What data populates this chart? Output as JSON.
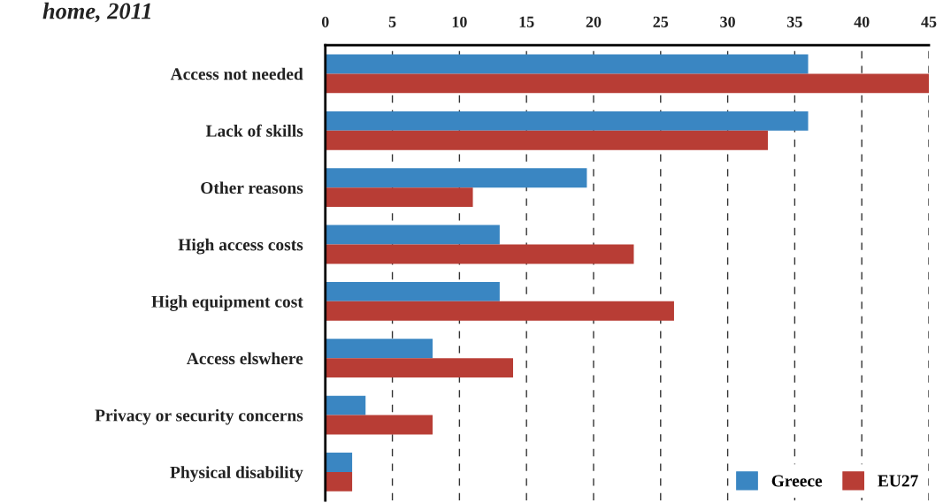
{
  "chart_data": {
    "type": "bar",
    "orientation": "horizontal",
    "title": "home, 2011",
    "categories": [
      "Access not needed",
      "Lack of skills",
      "Other reasons",
      "High access costs",
      "High equipment cost",
      "Access elswhere",
      "Privacy or security concerns",
      "Physical disability"
    ],
    "series": [
      {
        "name": "Greece",
        "color": "#3a86c2",
        "values": [
          36,
          36,
          19.5,
          13,
          13,
          8,
          3,
          2
        ]
      },
      {
        "name": "EU27",
        "color": "#b83d35",
        "values": [
          45,
          33,
          11,
          23,
          26,
          14,
          8,
          2
        ]
      }
    ],
    "xlim": [
      0,
      45
    ],
    "xticks": [
      0,
      5,
      10,
      15,
      20,
      25,
      30,
      35,
      40,
      45
    ],
    "grid": "x",
    "legend": "bottom right"
  }
}
